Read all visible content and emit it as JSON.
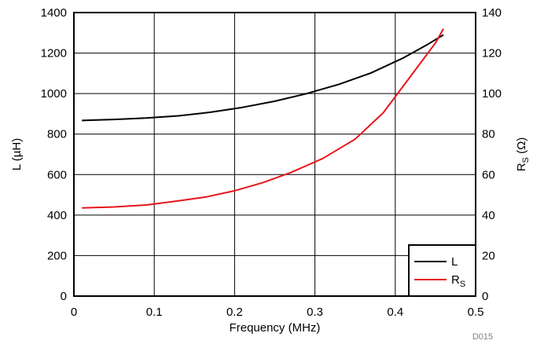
{
  "chart_data": {
    "type": "line",
    "xlabel": "Frequency (MHz)",
    "ylabel_left": "L (µH)",
    "ylabel_right_main": "R",
    "ylabel_right_sub": "S",
    "ylabel_right_unit": " (Ω)",
    "xlim": [
      0,
      0.5
    ],
    "ylim_left": [
      0,
      1400
    ],
    "ylim_right": [
      0,
      140
    ],
    "x_ticks": [
      "0",
      "0.1",
      "0.2",
      "0.3",
      "0.4",
      "0.5"
    ],
    "y_ticks_left": [
      "0",
      "200",
      "400",
      "600",
      "800",
      "1000",
      "1200",
      "1400"
    ],
    "y_ticks_right": [
      "0",
      "20",
      "40",
      "60",
      "80",
      "100",
      "120",
      "140"
    ],
    "grid": true,
    "legend_position": "bottom-right",
    "series": [
      {
        "name": "L",
        "axis": "left",
        "color": "#000000",
        "x": [
          0.01,
          0.05,
          0.09,
          0.13,
          0.17,
          0.21,
          0.25,
          0.29,
          0.33,
          0.37,
          0.41,
          0.44,
          0.46
        ],
        "y": [
          867,
          872,
          879,
          890,
          908,
          932,
          962,
          1000,
          1046,
          1102,
          1176,
          1242,
          1290
        ]
      },
      {
        "name": "RS",
        "name_main": "R",
        "name_sub": "S",
        "axis": "right",
        "color": "#e8141c",
        "x": [
          0.01,
          0.05,
          0.09,
          0.13,
          0.165,
          0.2,
          0.235,
          0.27,
          0.31,
          0.35,
          0.385,
          0.42,
          0.45,
          0.46
        ],
        "y": [
          43.5,
          44,
          45,
          47,
          49,
          52,
          56,
          61,
          68,
          77.5,
          90.5,
          109,
          125,
          132
        ]
      }
    ],
    "footnote": "D015"
  }
}
